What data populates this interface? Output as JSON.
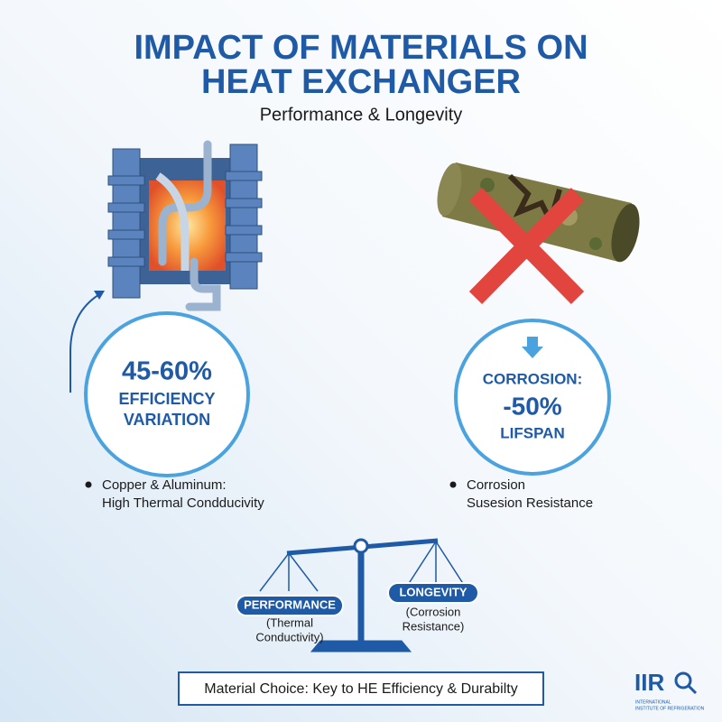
{
  "header": {
    "title_lines": [
      "IMPACT OF MATERIALS ON",
      "HEAT EXCHANGER"
    ],
    "subtitle": "Performance & Longevity"
  },
  "left_stat": {
    "value": "45-60%",
    "lines": [
      "EFFICIENCY",
      "VARIATION"
    ]
  },
  "right_stat": {
    "label": "CORROSION:",
    "value": "-50%",
    "line": "LIFSPAN"
  },
  "left_bullet": [
    "Copper & Aluminum:",
    "High Thermal Condducivity"
  ],
  "right_bullet": [
    "Corrosion",
    "Susesion Resistance"
  ],
  "scale": {
    "left": {
      "tag": "PERFORMANCE",
      "lines": [
        "(Thermal",
        "Conductivity)"
      ]
    },
    "right": {
      "tag": "LONGEVITY",
      "lines": [
        "(Corrosion",
        "Resistance)"
      ]
    }
  },
  "footer": "Material Choice: Key to HE Efficiency & Durabilty",
  "logo": {
    "mark": "IIR",
    "lines": [
      "INTERNATIONAL",
      "INSTITUTE OF REFRIGERATION"
    ]
  }
}
